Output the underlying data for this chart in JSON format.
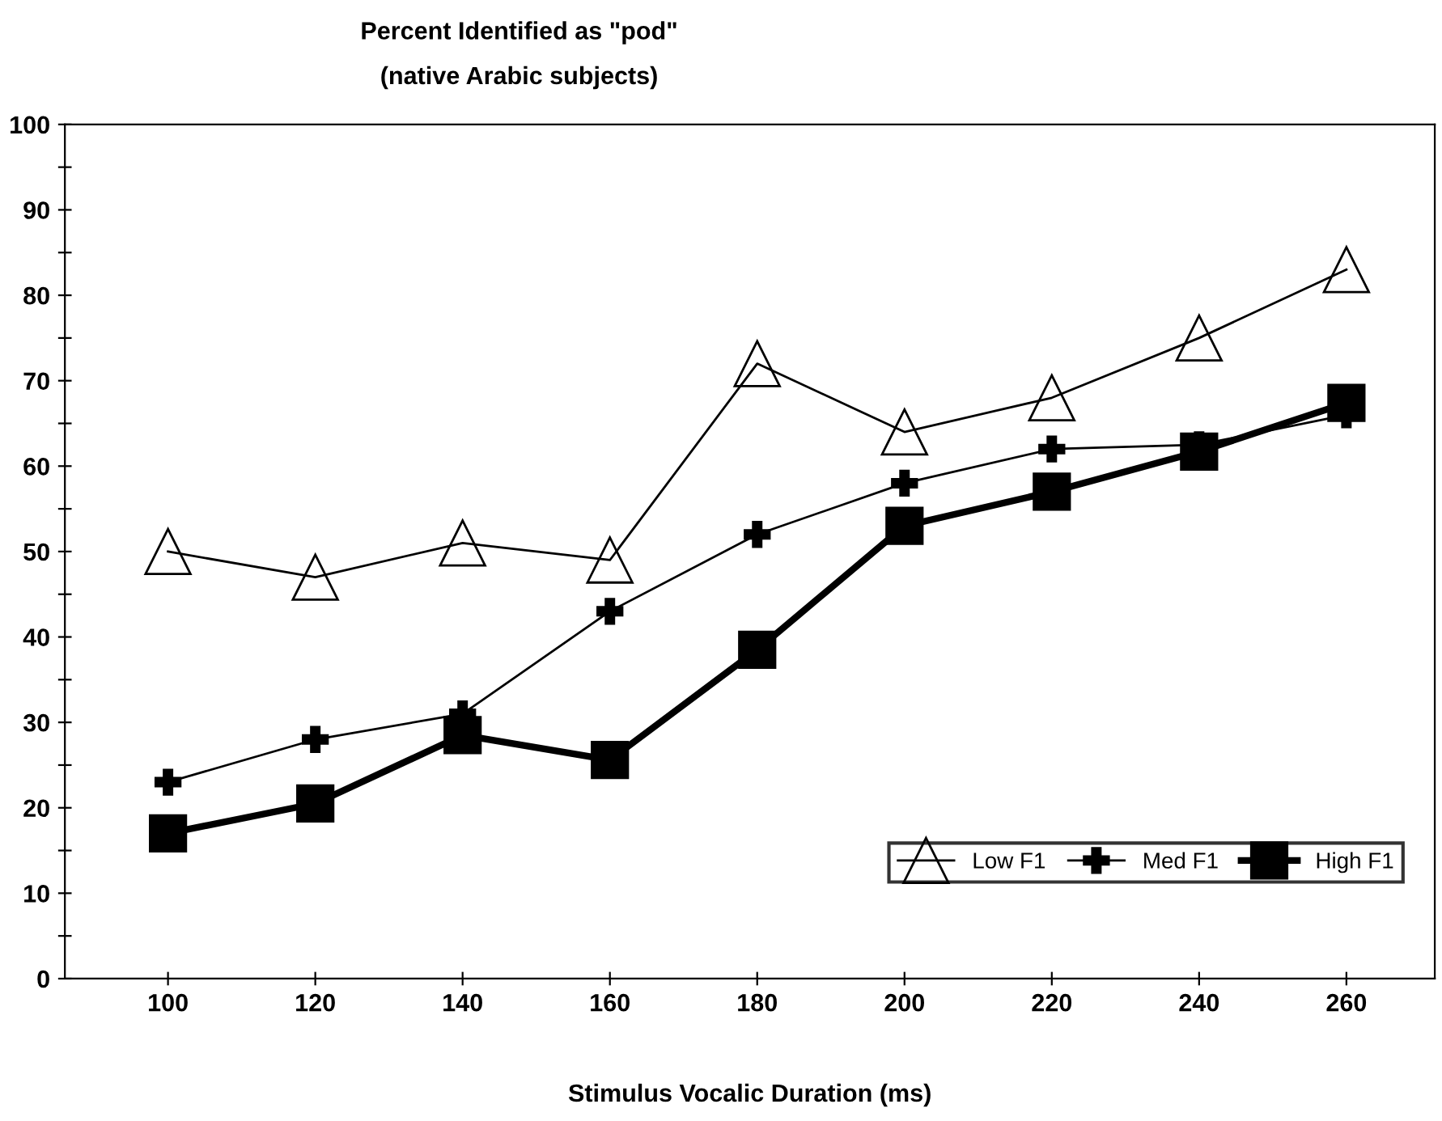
{
  "chart_data": {
    "type": "line",
    "title": "Percent Identified as \"pod\"",
    "subtitle": "(native Arabic subjects)",
    "xlabel": "Stimulus Vocalic Duration (ms)",
    "categories": [
      "100",
      "120",
      "140",
      "160",
      "180",
      "200",
      "220",
      "240",
      "260"
    ],
    "series": [
      {
        "name": "Low F1",
        "color": "#000000",
        "marker": "triangle",
        "values": [
          50,
          47,
          51,
          49,
          72,
          64,
          68,
          75,
          83
        ]
      },
      {
        "name": "Med F1",
        "color": "#000000",
        "marker": "cross",
        "values": [
          23,
          28,
          31,
          43,
          52,
          58,
          62,
          62.5,
          66
        ]
      },
      {
        "name": "High F1",
        "color": "#000000",
        "marker": "square",
        "values": [
          17,
          20.5,
          28.5,
          25.6,
          38.5,
          53,
          57,
          61.7,
          67.4
        ]
      }
    ],
    "ylim": [
      0,
      100
    ],
    "yticks": [
      0,
      {
        "value": 5,
        "label": null
      },
      10,
      {
        "value": 15,
        "label": null
      },
      20,
      {
        "value": 25,
        "label": null
      },
      30,
      {
        "value": 35,
        "label": null
      },
      40,
      {
        "value": 45,
        "label": null
      },
      50,
      {
        "value": 55,
        "label": null
      },
      60,
      {
        "value": 65,
        "label": null
      },
      70,
      {
        "value": 75,
        "label": null
      },
      80,
      {
        "value": 85,
        "label": null
      },
      90,
      {
        "value": 95,
        "label": null
      },
      100
    ],
    "grid": false,
    "legend": "bottom right",
    "line_style": "solid"
  }
}
